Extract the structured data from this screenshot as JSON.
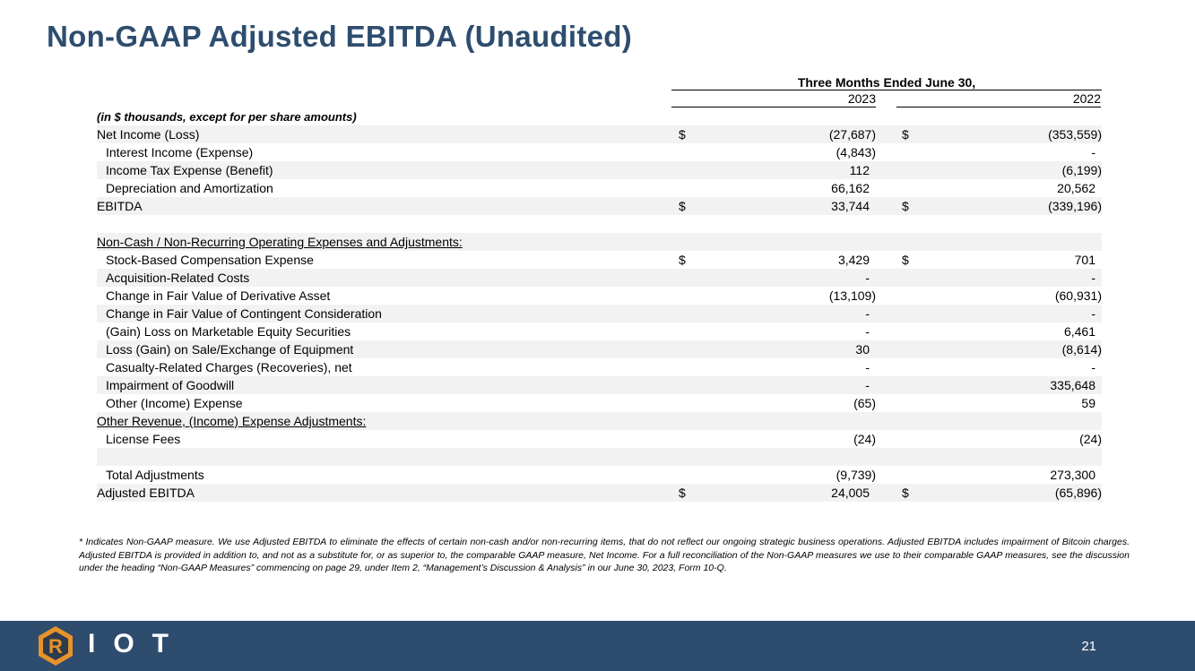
{
  "title": "Non-GAAP Adjusted EBITDA (Unaudited)",
  "period_header": "Three Months Ended June 30,",
  "years": [
    "2023",
    "2022"
  ],
  "units_note": "(in $ thousands, except for per share amounts)",
  "rows": [
    {
      "label": "Net Income (Loss)",
      "d1": "$",
      "v1": "(27,687)",
      "d2": "$",
      "v2": "(353,559)",
      "indent": false,
      "section": false
    },
    {
      "label": "Interest Income (Expense)",
      "d1": "",
      "v1": "(4,843)",
      "d2": "",
      "v2": "-",
      "indent": true,
      "section": false
    },
    {
      "label": "Income Tax Expense (Benefit)",
      "d1": "",
      "v1": "112",
      "d2": "",
      "v2": "(6,199)",
      "indent": true,
      "section": false
    },
    {
      "label": "Depreciation and Amortization",
      "d1": "",
      "v1": "66,162",
      "d2": "",
      "v2": "20,562",
      "indent": true,
      "section": false
    },
    {
      "label": "EBITDA",
      "d1": "$",
      "v1": "33,744",
      "d2": "$",
      "v2": "(339,196)",
      "indent": false,
      "section": false
    },
    {
      "label": "",
      "d1": "",
      "v1": "",
      "d2": "",
      "v2": "",
      "indent": false,
      "section": false
    },
    {
      "label": "Non-Cash / Non-Recurring Operating Expenses and Adjustments:",
      "d1": "",
      "v1": "",
      "d2": "",
      "v2": "",
      "indent": false,
      "section": true
    },
    {
      "label": "Stock-Based Compensation Expense",
      "d1": "$",
      "v1": "3,429",
      "d2": "$",
      "v2": "701",
      "indent": true,
      "section": false
    },
    {
      "label": "Acquisition-Related Costs",
      "d1": "",
      "v1": "-",
      "d2": "",
      "v2": "-",
      "indent": true,
      "section": false
    },
    {
      "label": "Change in Fair Value of Derivative Asset",
      "d1": "",
      "v1": "(13,109)",
      "d2": "",
      "v2": "(60,931)",
      "indent": true,
      "section": false
    },
    {
      "label": "Change in Fair Value of Contingent Consideration",
      "d1": "",
      "v1": "-",
      "d2": "",
      "v2": "-",
      "indent": true,
      "section": false
    },
    {
      "label": "(Gain) Loss on Marketable Equity Securities",
      "d1": "",
      "v1": "-",
      "d2": "",
      "v2": "6,461",
      "indent": true,
      "section": false
    },
    {
      "label": "Loss (Gain) on Sale/Exchange of Equipment",
      "d1": "",
      "v1": "30",
      "d2": "",
      "v2": "(8,614)",
      "indent": true,
      "section": false
    },
    {
      "label": "Casualty-Related Charges (Recoveries), net",
      "d1": "",
      "v1": "-",
      "d2": "",
      "v2": "-",
      "indent": true,
      "section": false
    },
    {
      "label": "Impairment of Goodwill",
      "d1": "",
      "v1": "-",
      "d2": "",
      "v2": "335,648",
      "indent": true,
      "section": false
    },
    {
      "label": "Other (Income) Expense",
      "d1": "",
      "v1": "(65)",
      "d2": "",
      "v2": "59",
      "indent": true,
      "section": false
    },
    {
      "label": "Other Revenue, (Income) Expense Adjustments:",
      "d1": "",
      "v1": "",
      "d2": "",
      "v2": "",
      "indent": false,
      "section": true
    },
    {
      "label": "License Fees",
      "d1": "",
      "v1": "(24)",
      "d2": "",
      "v2": "(24)",
      "indent": true,
      "section": false
    },
    {
      "label": "",
      "d1": "",
      "v1": "",
      "d2": "",
      "v2": "",
      "indent": false,
      "section": false
    },
    {
      "label": "Total Adjustments",
      "d1": "",
      "v1": "(9,739)",
      "d2": "",
      "v2": "273,300",
      "indent": true,
      "section": false
    },
    {
      "label": "Adjusted EBITDA",
      "d1": "$",
      "v1": "24,005",
      "d2": "$",
      "v2": "(65,896)",
      "indent": false,
      "section": false
    }
  ],
  "footnote": "* Indicates Non-GAAP measure. We use Adjusted EBITDA to eliminate the effects of certain non-cash and/or non-recurring items, that do not reflect our ongoing strategic business operations. Adjusted EBITDA includes impairment of Bitcoin charges. Adjusted EBITDA is provided in addition to, and not as a substitute for, or as superior to, the comparable GAAP measure, Net Income. For a full reconciliation of the Non-GAAP measures we use to their comparable GAAP measures, see the discussion under the heading “Non-GAAP Measures” commencing on page 29, under Item 2, “Management’s Discussion & Analysis” in our June 30, 2023, Form 10-Q.",
  "footer": {
    "logo_letter": "R",
    "logo_text": "IOT",
    "page_number": "21",
    "colors": {
      "band": "#2e4d6e",
      "logo_orange": "#e8922b",
      "logo_dark": "#2e3b4c"
    }
  }
}
